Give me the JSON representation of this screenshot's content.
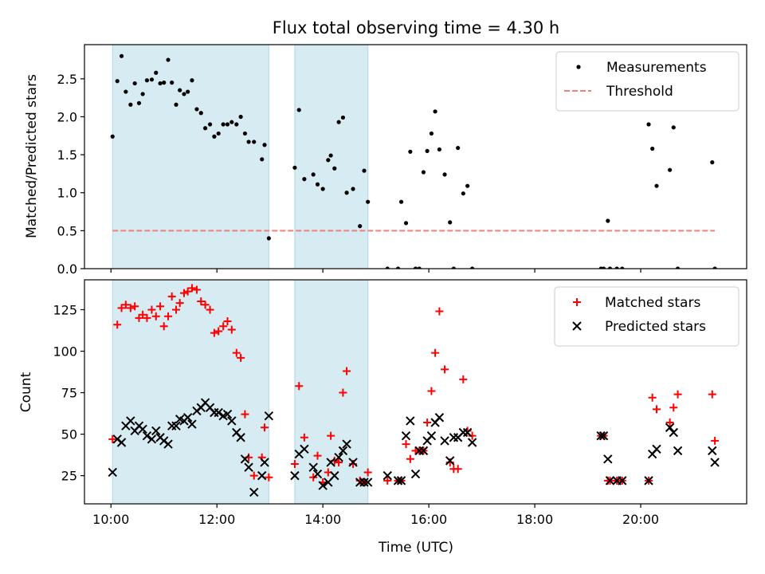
{
  "chart_data": [
    {
      "type": "scatter",
      "title": "Flux total observing time = 4.30 h",
      "xlabel": "",
      "ylabel": "Matched/Predicted stars",
      "xlim_hours": [
        9.5,
        22.0
      ],
      "ylim": [
        0,
        2.95
      ],
      "yticks": [
        0.0,
        0.5,
        1.0,
        1.5,
        2.0,
        2.5
      ],
      "ytick_labels": [
        "0.0",
        "0.5",
        "1.0",
        "1.5",
        "2.0",
        "2.5"
      ],
      "grid": false,
      "legend_position": "top-right",
      "shaded_intervals_hours": [
        [
          10.03,
          12.98
        ],
        [
          13.47,
          14.85
        ]
      ],
      "shade_color": "#add8e6",
      "threshold": {
        "name": "Threshold",
        "value": 0.5,
        "x_range_hours": [
          10.03,
          21.4
        ],
        "color": "#f08080"
      },
      "series": [
        {
          "name": "Measurements",
          "marker": "dot",
          "color": "#000000",
          "x_hours": [
            10.03,
            10.12,
            10.2,
            10.28,
            10.37,
            10.45,
            10.53,
            10.6,
            10.68,
            10.77,
            10.85,
            10.93,
            11.0,
            11.08,
            11.15,
            11.23,
            11.3,
            11.38,
            11.45,
            11.53,
            11.62,
            11.7,
            11.78,
            11.87,
            11.95,
            12.03,
            12.12,
            12.2,
            12.28,
            12.37,
            12.45,
            12.53,
            12.6,
            12.7,
            12.85,
            12.9,
            12.98,
            13.47,
            13.55,
            13.65,
            13.82,
            13.9,
            14.0,
            14.1,
            14.15,
            14.22,
            14.3,
            14.38,
            14.45,
            14.57,
            14.7,
            14.78,
            14.85,
            15.22,
            15.42,
            15.48,
            15.57,
            15.65,
            15.75,
            15.82,
            15.9,
            15.97,
            16.05,
            16.12,
            16.2,
            16.3,
            16.4,
            16.47,
            16.55,
            16.65,
            16.73,
            16.82,
            19.25,
            19.3,
            19.38,
            19.42,
            19.55,
            19.65,
            20.15,
            20.22,
            20.3,
            20.55,
            20.62,
            20.7,
            21.35,
            21.4
          ],
          "y": [
            1.74,
            2.47,
            2.8,
            2.33,
            2.16,
            2.44,
            2.18,
            2.3,
            2.48,
            2.49,
            2.58,
            2.44,
            2.45,
            2.75,
            2.45,
            2.16,
            2.35,
            2.3,
            2.33,
            2.48,
            2.1,
            2.05,
            1.85,
            1.9,
            1.74,
            1.78,
            1.9,
            1.9,
            1.93,
            1.9,
            2.0,
            1.78,
            1.67,
            1.67,
            1.44,
            1.63,
            0.4,
            1.33,
            2.09,
            1.18,
            1.24,
            1.11,
            1.05,
            1.43,
            1.49,
            1.32,
            1.93,
            1.99,
            1.0,
            1.05,
            0.56,
            1.29,
            0.88,
            0.0,
            0.0,
            0.88,
            0.6,
            1.54,
            0.0,
            0.0,
            1.27,
            1.55,
            1.78,
            2.07,
            1.57,
            1.24,
            0.61,
            0.0,
            1.59,
            0.99,
            1.09,
            0.0,
            0.0,
            0.0,
            0.63,
            0.0,
            0.0,
            0.0,
            1.9,
            1.58,
            1.09,
            1.3,
            1.86,
            0.0,
            1.4,
            0.0
          ]
        }
      ]
    },
    {
      "type": "scatter",
      "title": "",
      "xlabel": "Time (UTC)",
      "ylabel": "Count",
      "xlim_hours": [
        9.5,
        22.0
      ],
      "xticks_hours": [
        10,
        12,
        14,
        16,
        18,
        20
      ],
      "xtick_labels": [
        "10:00",
        "12:00",
        "14:00",
        "16:00",
        "18:00",
        "20:00"
      ],
      "ylim": [
        8,
        143
      ],
      "yticks": [
        25,
        50,
        75,
        100,
        125
      ],
      "ytick_labels": [
        "25",
        "50",
        "75",
        "100",
        "125"
      ],
      "grid": false,
      "legend_position": "top-right",
      "shaded_intervals_hours": [
        [
          10.03,
          12.98
        ],
        [
          13.47,
          14.85
        ]
      ],
      "shade_color": "#add8e6",
      "series": [
        {
          "name": "Matched stars",
          "marker": "plus",
          "color": "#ff0000",
          "x_hours": [
            10.03,
            10.12,
            10.2,
            10.28,
            10.37,
            10.45,
            10.53,
            10.6,
            10.68,
            10.77,
            10.85,
            10.93,
            11.0,
            11.08,
            11.15,
            11.23,
            11.3,
            11.38,
            11.45,
            11.53,
            11.62,
            11.7,
            11.78,
            11.87,
            11.95,
            12.03,
            12.12,
            12.2,
            12.28,
            12.37,
            12.45,
            12.53,
            12.6,
            12.7,
            12.85,
            12.9,
            12.98,
            13.47,
            13.55,
            13.65,
            13.82,
            13.9,
            14.0,
            14.1,
            14.15,
            14.22,
            14.3,
            14.38,
            14.45,
            14.57,
            14.7,
            14.78,
            14.85,
            15.22,
            15.42,
            15.48,
            15.57,
            15.65,
            15.75,
            15.82,
            15.9,
            15.97,
            16.05,
            16.12,
            16.2,
            16.3,
            16.4,
            16.47,
            16.55,
            16.65,
            16.73,
            16.82,
            19.25,
            19.3,
            19.38,
            19.42,
            19.55,
            19.65,
            20.15,
            20.22,
            20.3,
            20.55,
            20.62,
            20.7,
            21.35,
            21.4
          ],
          "y": [
            47,
            116,
            126,
            128,
            126,
            127,
            120,
            122,
            120,
            125,
            121,
            127,
            115,
            121,
            133,
            125,
            129,
            135,
            136,
            138,
            137,
            130,
            128,
            125,
            111,
            112,
            115,
            118,
            113,
            99,
            96,
            62,
            36,
            25,
            36,
            54,
            24,
            32,
            79,
            48,
            24,
            37,
            21,
            27,
            49,
            34,
            33,
            75,
            88,
            32,
            22,
            21,
            27,
            22,
            22,
            22,
            44,
            35,
            40,
            40,
            40,
            57,
            76,
            99,
            124,
            89,
            33,
            29,
            29,
            83,
            52,
            49,
            49,
            49,
            22,
            22,
            22,
            22,
            22,
            72,
            65,
            57,
            66,
            74,
            74,
            46
          ]
        },
        {
          "name": "Predicted stars",
          "marker": "x",
          "color": "#000000",
          "x_hours": [
            10.03,
            10.12,
            10.2,
            10.28,
            10.37,
            10.45,
            10.53,
            10.6,
            10.68,
            10.77,
            10.85,
            10.93,
            11.0,
            11.08,
            11.15,
            11.23,
            11.3,
            11.38,
            11.45,
            11.53,
            11.62,
            11.7,
            11.78,
            11.87,
            11.95,
            12.03,
            12.12,
            12.2,
            12.28,
            12.37,
            12.45,
            12.53,
            12.6,
            12.7,
            12.85,
            12.9,
            12.98,
            13.47,
            13.55,
            13.65,
            13.82,
            13.9,
            14.0,
            14.1,
            14.15,
            14.22,
            14.3,
            14.38,
            14.45,
            14.57,
            14.7,
            14.78,
            14.85,
            15.22,
            15.42,
            15.48,
            15.57,
            15.65,
            15.75,
            15.82,
            15.9,
            15.97,
            16.05,
            16.12,
            16.2,
            16.3,
            16.4,
            16.47,
            16.55,
            16.65,
            16.73,
            16.82,
            19.25,
            19.3,
            19.38,
            19.42,
            19.55,
            19.65,
            20.15,
            20.22,
            20.3,
            20.55,
            20.62,
            20.7,
            21.35,
            21.4
          ],
          "y": [
            27,
            47,
            45,
            55,
            58,
            52,
            55,
            53,
            49,
            47,
            52,
            48,
            46,
            44,
            55,
            55,
            59,
            58,
            60,
            56,
            64,
            66,
            69,
            66,
            63,
            63,
            61,
            62,
            58,
            51,
            48,
            35,
            30,
            15,
            25,
            33,
            61,
            25,
            38,
            41,
            30,
            26,
            19,
            21,
            33,
            25,
            36,
            40,
            44,
            33,
            21,
            21,
            21,
            25,
            22,
            22,
            49,
            58,
            26,
            40,
            40,
            46,
            49,
            57,
            60,
            46,
            34,
            48,
            48,
            51,
            51,
            45,
            49,
            49,
            35,
            22,
            22,
            22,
            22,
            38,
            41,
            54,
            51,
            40,
            40,
            33
          ]
        }
      ]
    }
  ]
}
